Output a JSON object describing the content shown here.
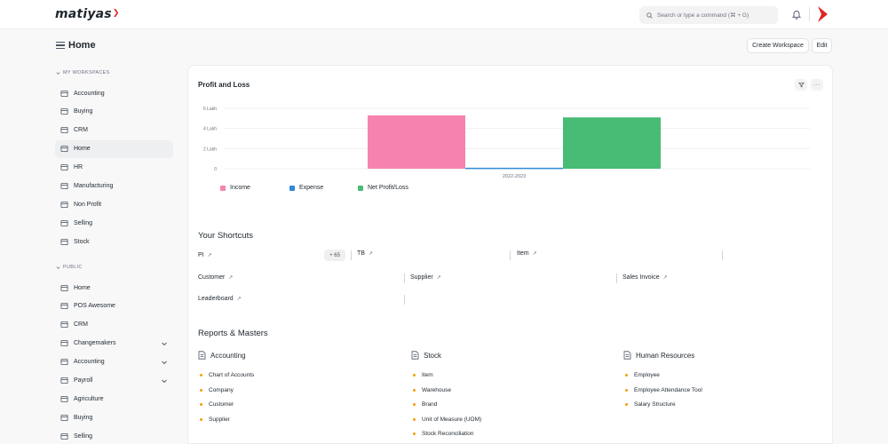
{
  "navbar": {
    "logo": "matiyas",
    "search_placeholder": "Search or type a command (⌘ + G)"
  },
  "header": {
    "title": "Home",
    "create_workspace": "Create Workspace",
    "edit": "Edit"
  },
  "sidebar": {
    "my_workspaces_label": "MY WORKSPACES",
    "my_workspaces": [
      {
        "label": "Accounting",
        "icon": "accounting-icon"
      },
      {
        "label": "Buying",
        "icon": "buying-icon"
      },
      {
        "label": "CRM",
        "icon": "crm-icon"
      },
      {
        "label": "Home",
        "icon": "home-icon",
        "active": true
      },
      {
        "label": "HR",
        "icon": "hr-icon"
      },
      {
        "label": "Manufacturing",
        "icon": "manufacturing-icon"
      },
      {
        "label": "Non Profit",
        "icon": "non-profit-icon"
      },
      {
        "label": "Selling",
        "icon": "selling-icon"
      },
      {
        "label": "Stock",
        "icon": "stock-icon"
      }
    ],
    "public_label": "PUBLIC",
    "public": [
      {
        "label": "Home",
        "icon": "home-icon"
      },
      {
        "label": "POS Awesome",
        "icon": "pos-icon"
      },
      {
        "label": "CRM",
        "icon": "crm-icon"
      },
      {
        "label": "Changemakers",
        "icon": "users-icon",
        "expandable": true
      },
      {
        "label": "Accounting",
        "icon": "accounting-icon",
        "expandable": true
      },
      {
        "label": "Payroll",
        "icon": "payroll-icon",
        "expandable": true
      },
      {
        "label": "Agriculture",
        "icon": "agriculture-icon"
      },
      {
        "label": "Buying",
        "icon": "buying-icon"
      },
      {
        "label": "Selling",
        "icon": "selling-icon"
      }
    ]
  },
  "chart_data": {
    "type": "bar",
    "title": "Profit and Loss",
    "categories": [
      "2022-2023"
    ],
    "y_ticks": [
      "0",
      "2 Lakh",
      "4 Lakh",
      "6 Lakh"
    ],
    "ylim": [
      0,
      6
    ],
    "series": [
      {
        "name": "Income",
        "values": [
          5.3
        ],
        "color": "#f683ae"
      },
      {
        "name": "Expense",
        "values": [
          0.1
        ],
        "color": "#318ad8"
      },
      {
        "name": "Net Profit/Loss",
        "values": [
          5.1
        ],
        "color": "#48bb74"
      }
    ],
    "legend_position": "bottom-left",
    "grid": true
  },
  "shortcuts": {
    "title": "Your Shortcuts",
    "badge": "+ 65",
    "items": [
      "PI",
      "TB",
      "Item",
      "Customer",
      "Supplier",
      "Sales Invoice",
      "Leaderboard"
    ]
  },
  "reports": {
    "title": "Reports & Masters",
    "groups": [
      {
        "title": "Accounting",
        "links": [
          "Chart of Accounts",
          "Company",
          "Customer",
          "Supplier"
        ]
      },
      {
        "title": "Stock",
        "links": [
          "Item",
          "Warehouse",
          "Brand",
          "Unit of Measure (UOM)",
          "Stock Reconciliation"
        ]
      },
      {
        "title": "Human Resources",
        "links": [
          "Employee",
          "Employee Attendance Tool",
          "Salary Structure"
        ]
      }
    ]
  }
}
